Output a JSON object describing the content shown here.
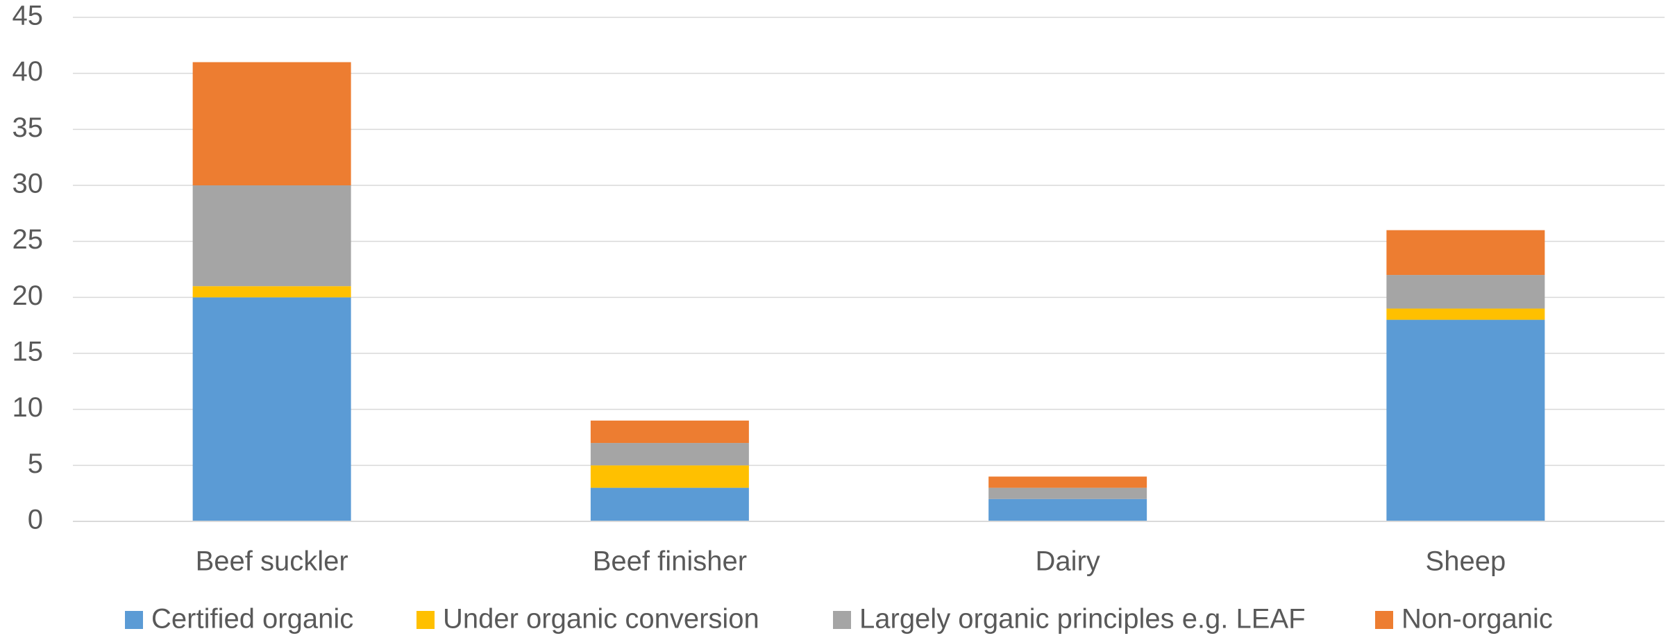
{
  "chart_data": {
    "type": "stacked_bar",
    "categories": [
      "Beef suckler",
      "Beef finisher",
      "Dairy",
      "Sheep"
    ],
    "series": [
      {
        "name": "Certified organic",
        "color": "#5b9bd5",
        "values": [
          20,
          3,
          2,
          18
        ]
      },
      {
        "name": "Under organic conversion",
        "color": "#ffc000",
        "values": [
          1,
          2,
          0,
          1
        ]
      },
      {
        "name": "Largely organic principles e.g. LEAF",
        "color": "#a5a5a5",
        "values": [
          9,
          2,
          1,
          3
        ]
      },
      {
        "name": "Non-organic",
        "color": "#ed7d31",
        "values": [
          11,
          2,
          1,
          4
        ]
      }
    ],
    "ylim": [
      0,
      45
    ],
    "yticks": [
      0,
      5,
      10,
      15,
      20,
      25,
      30,
      35,
      40,
      45
    ],
    "grid": true,
    "legend": "bottom"
  }
}
